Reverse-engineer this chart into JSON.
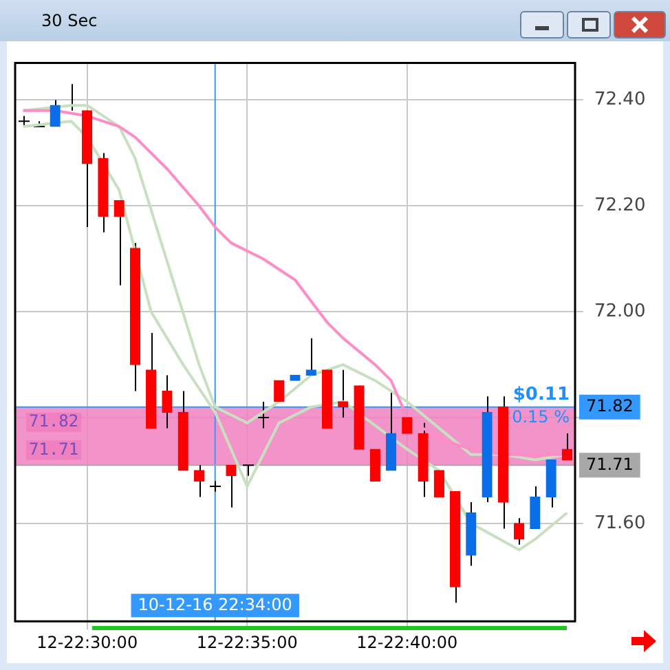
{
  "chart_data": {
    "type": "candlestick",
    "title": "30 Sec",
    "categories": [
      null,
      null,
      null,
      null,
      "12-22:30:00",
      null,
      null,
      null,
      null,
      null,
      null,
      null,
      "10-12-16 22:34:00",
      null,
      "12-22:35:00",
      null,
      null,
      null,
      null,
      null,
      null,
      null,
      null,
      null,
      "12-22:40:00",
      null,
      null,
      null,
      null,
      null,
      null,
      null,
      null,
      null,
      null
    ],
    "ohlc": [
      [
        72.36,
        72.37,
        72.35,
        72.36
      ],
      [
        72.35,
        72.36,
        72.35,
        72.35
      ],
      [
        72.35,
        72.4,
        72.35,
        72.39
      ],
      [
        72.39,
        72.43,
        72.38,
        72.39
      ],
      [
        72.38,
        72.38,
        72.16,
        72.28
      ],
      [
        72.29,
        72.3,
        72.15,
        72.18
      ],
      [
        72.21,
        72.21,
        72.05,
        72.18
      ],
      [
        72.12,
        72.13,
        71.85,
        71.9
      ],
      [
        71.89,
        71.96,
        71.78,
        71.78
      ],
      [
        71.85,
        71.88,
        71.78,
        71.81
      ],
      [
        71.81,
        71.85,
        71.7,
        71.7
      ],
      [
        71.7,
        71.71,
        71.65,
        71.68
      ],
      [
        71.67,
        71.68,
        71.66,
        71.67
      ],
      [
        71.71,
        71.71,
        71.63,
        71.69
      ],
      [
        71.71,
        71.71,
        71.69,
        71.71
      ],
      [
        71.8,
        71.83,
        71.78,
        71.8
      ],
      [
        71.87,
        71.87,
        71.83,
        71.83
      ],
      [
        71.87,
        71.88,
        71.87,
        71.88
      ],
      [
        71.88,
        71.95,
        71.88,
        71.89
      ],
      [
        71.89,
        71.89,
        71.78,
        71.78
      ],
      [
        71.83,
        71.89,
        71.8,
        71.82
      ],
      [
        71.86,
        71.86,
        71.74,
        71.74
      ],
      [
        71.74,
        71.74,
        71.68,
        71.68
      ],
      [
        71.7,
        71.85,
        71.7,
        71.77
      ],
      [
        71.8,
        71.8,
        71.77,
        71.77
      ],
      [
        71.77,
        71.79,
        71.65,
        71.68
      ],
      [
        71.7,
        71.7,
        71.65,
        71.65
      ],
      [
        71.66,
        71.66,
        71.45,
        71.48
      ],
      [
        71.54,
        71.64,
        71.52,
        71.62
      ],
      [
        71.65,
        71.84,
        71.64,
        71.81
      ],
      [
        71.82,
        71.84,
        71.59,
        71.64
      ],
      [
        71.6,
        71.61,
        71.56,
        71.57
      ],
      [
        71.59,
        71.67,
        71.59,
        71.65
      ],
      [
        71.65,
        71.72,
        71.63,
        71.72
      ],
      [
        71.74,
        71.77,
        71.72,
        71.72
      ]
    ],
    "colors": [
      "#000000",
      "#000000",
      "#0a6ee8",
      "#000000",
      "#ff0000",
      "#ff0000",
      "#ff0000",
      "#ff0000",
      "#ff0000",
      "#ff0000",
      "#ff0000",
      "#ff0000",
      "#000000",
      "#ff0000",
      "#000000",
      "#000000",
      "#ff0000",
      "#0a6ee8",
      "#0a6ee8",
      "#ff0000",
      "#ff0000",
      "#ff0000",
      "#ff0000",
      "#0a6ee8",
      "#ff0000",
      "#ff0000",
      "#ff0000",
      "#ff0000",
      "#0a6ee8",
      "#0a6ee8",
      "#ff0000",
      "#ff0000",
      "#0a6ee8",
      "#0a6ee8",
      "#ff0000"
    ],
    "series": [
      {
        "type": "line",
        "color": "#ff8cc6",
        "values": [
          72.38,
          null,
          72.38,
          null,
          72.37,
          null,
          72.35,
          72.33,
          null,
          72.27,
          null,
          72.2,
          72.16,
          72.13,
          null,
          72.1,
          null,
          72.06,
          null,
          71.98,
          71.95,
          null,
          71.9,
          71.87,
          71.8,
          null,
          71.76,
          null,
          71.74,
          null,
          71.73,
          null,
          null,
          71.73,
          71.73
        ]
      },
      {
        "type": "line",
        "color": "#c8e0c0",
        "values": [
          72.35,
          null,
          null,
          72.36,
          72.33,
          null,
          72.23,
          null,
          72.0,
          null,
          71.9,
          null,
          71.81,
          null,
          71.67,
          null,
          71.79,
          null,
          71.82,
          null,
          71.83,
          null,
          null,
          null,
          71.74,
          null,
          71.7,
          null,
          71.6,
          null,
          null,
          71.55,
          71.57,
          null,
          71.62
        ]
      },
      {
        "type": "line",
        "color": "#c8e0c0",
        "values": [
          72.38,
          null,
          null,
          72.39,
          72.39,
          null,
          72.35,
          72.29,
          null,
          null,
          null,
          71.9,
          71.82,
          null,
          71.79,
          null,
          71.83,
          null,
          71.88,
          null,
          71.9,
          null,
          71.87,
          null,
          71.83,
          null,
          71.78,
          null,
          71.73,
          null,
          71.73,
          null,
          71.72,
          null,
          71.73
        ]
      }
    ],
    "ylim": [
      71.415,
      72.47
    ],
    "yticks": [
      {
        "value": 72.4,
        "label": "72.40"
      },
      {
        "value": 72.2,
        "label": "72.20"
      },
      {
        "value": 72.0,
        "label": "72.00"
      },
      {
        "value": 71.8,
        "label": null
      },
      {
        "value": 71.6,
        "label": "71.60"
      }
    ],
    "ref_lines": [
      {
        "axis": "x",
        "value": "10-12-16 22:34:00",
        "color": "#3399ff"
      },
      {
        "axis": "y",
        "value": 71.82,
        "label": "71.82",
        "color": "#3399ff"
      },
      {
        "axis": "y",
        "value": 71.71,
        "label": "71.71",
        "color": "#a8a8a8"
      }
    ],
    "bands": [
      {
        "axis": "y",
        "from": 71.71,
        "to": 71.82,
        "color": "#f080c0"
      }
    ],
    "annotations": [
      "71.82",
      "71.71",
      "$0.11",
      "0.15 %"
    ],
    "grid": true,
    "legend": false
  }
}
